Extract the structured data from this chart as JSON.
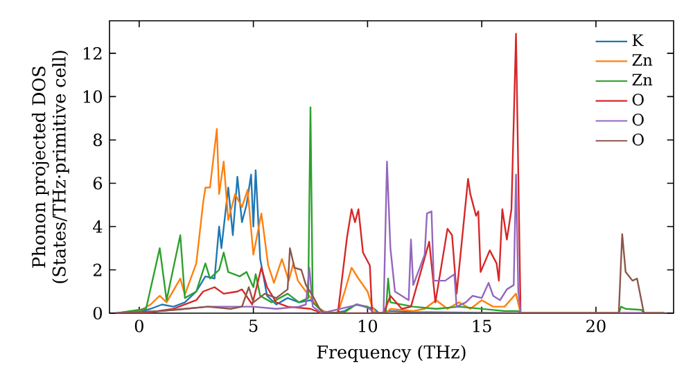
{
  "chart_data": {
    "type": "line",
    "xlabel": "Frequency (THz)",
    "ylabel": "Phonon projected DOS\n(States/THz·primitive cell)",
    "xlim": [
      -1.3,
      23.4
    ],
    "ylim": [
      0,
      13.5
    ],
    "xticks": [
      0,
      5,
      10,
      15,
      20
    ],
    "yticks": [
      0,
      2,
      4,
      6,
      8,
      10,
      12
    ],
    "legend": "top right",
    "series": [
      {
        "name": "K",
        "color": "#1f77b4",
        "x": [
          -1,
          0,
          0.5,
          1,
          1.5,
          2,
          2.5,
          2.9,
          3.3,
          3.5,
          3.6,
          3.9,
          4.1,
          4.3,
          4.5,
          4.7,
          4.9,
          5.0,
          5.1,
          5.3,
          5.6,
          6,
          6.5,
          7,
          7.5,
          8,
          8.5,
          9,
          9.5,
          10.3,
          10.5,
          11,
          12,
          16.7,
          23
        ],
        "values": [
          0,
          0.05,
          0.2,
          0.4,
          0.3,
          0.5,
          1.0,
          1.7,
          1.6,
          4.0,
          3.0,
          5.8,
          3.6,
          6.3,
          4.2,
          5.0,
          6.4,
          4.0,
          6.6,
          2.5,
          0.8,
          0.4,
          0.7,
          0.5,
          0.6,
          0.1,
          0,
          0.1,
          0.4,
          0.2,
          0,
          0.1,
          0.05,
          0,
          0
        ]
      },
      {
        "name": "Zn",
        "color": "#ff7f0e",
        "x": [
          -1,
          0,
          0.5,
          0.9,
          1.2,
          1.8,
          2.0,
          2.5,
          2.8,
          2.9,
          3.1,
          3.4,
          3.5,
          3.7,
          3.9,
          4.2,
          4.5,
          4.75,
          5.0,
          5.35,
          5.65,
          5.9,
          6.25,
          6.55,
          6.75,
          6.95,
          7.3,
          7.8,
          8.2,
          8.7,
          9.0,
          9.3,
          9.6,
          10.0,
          10.2,
          10.4,
          10.8,
          11,
          12,
          12.5,
          13,
          13.5,
          14,
          14.5,
          15,
          15.5,
          16,
          16.5,
          16.7,
          23
        ],
        "values": [
          0,
          0.1,
          0.4,
          0.8,
          0.5,
          1.6,
          0.85,
          2.3,
          5.1,
          5.8,
          5.8,
          8.5,
          5.5,
          7.0,
          4.3,
          5.5,
          4.9,
          5.7,
          2.7,
          4.6,
          2.2,
          1.4,
          2.5,
          1.5,
          2.3,
          1.5,
          1.0,
          0.3,
          0,
          0,
          1.0,
          2.1,
          1.6,
          1.0,
          0.3,
          0,
          0,
          0.2,
          0.1,
          0.2,
          0.6,
          0.2,
          0.5,
          0.2,
          0.6,
          0.3,
          0.3,
          0.9,
          0,
          0
        ]
      },
      {
        "name": "Zn",
        "color": "#2ca02c",
        "x": [
          -1,
          0.3,
          0.9,
          1.2,
          1.8,
          2.0,
          2.5,
          2.9,
          3.1,
          3.5,
          3.7,
          3.9,
          4.4,
          4.7,
          5.0,
          5.1,
          5.3,
          5.8,
          6.5,
          7.0,
          7.4,
          7.5,
          7.6,
          7.9,
          8.1,
          9.0,
          9.5,
          10.0,
          10.3,
          10.8,
          10.9,
          11.0,
          12,
          13,
          14,
          15,
          16,
          16.6,
          16.7,
          21,
          21.1,
          21.3,
          22,
          22.1,
          23
        ],
        "values": [
          0,
          0.2,
          3.0,
          0.6,
          3.6,
          0.7,
          1.0,
          2.3,
          1.6,
          2.0,
          2.8,
          1.9,
          1.7,
          1.9,
          1.2,
          1.8,
          0.8,
          0.5,
          0.9,
          0.5,
          0.7,
          9.5,
          0.5,
          0.2,
          0,
          0.05,
          0.4,
          0.3,
          0,
          0,
          1.6,
          0.5,
          0.3,
          0.2,
          0.3,
          0.2,
          0.1,
          0.1,
          0,
          0,
          0.3,
          0.2,
          0.15,
          0,
          0
        ]
      },
      {
        "name": "O",
        "color": "#d62728",
        "x": [
          -1,
          0.5,
          1.5,
          2.5,
          2.8,
          3.3,
          3.7,
          4.3,
          4.5,
          4.95,
          5.35,
          5.6,
          6.0,
          6.5,
          7.5,
          8,
          8.7,
          9.1,
          9.3,
          9.45,
          9.6,
          9.8,
          10.1,
          10.2,
          10.7,
          11.0,
          11.5,
          11.9,
          12.7,
          12.97,
          13.5,
          13.7,
          13.9,
          14.4,
          14.5,
          14.75,
          14.85,
          14.95,
          15.35,
          15.65,
          15.75,
          15.9,
          16.1,
          16.3,
          16.5,
          16.7,
          23
        ],
        "values": [
          0,
          0.05,
          0.2,
          0.6,
          1.0,
          1.2,
          0.9,
          1.0,
          1.1,
          0.4,
          2.1,
          1.2,
          0.5,
          0.3,
          0.2,
          0,
          0,
          3.5,
          4.8,
          4.2,
          4.8,
          2.8,
          2.2,
          0,
          0,
          0.8,
          0.2,
          0.3,
          3.3,
          0.5,
          3.9,
          3.6,
          0.9,
          6.2,
          5.5,
          4.5,
          4.7,
          1.9,
          2.9,
          2.3,
          1.5,
          4.8,
          3.4,
          4.8,
          12.9,
          0,
          0
        ]
      },
      {
        "name": "O",
        "color": "#9467bd",
        "x": [
          -1,
          1,
          3,
          4,
          5,
          6,
          7,
          7.3,
          7.45,
          7.6,
          8,
          9.2,
          9.6,
          10.1,
          10.3,
          10.7,
          10.85,
          11.0,
          11.2,
          11.8,
          11.9,
          12.0,
          12.5,
          12.6,
          12.8,
          12.9,
          13.4,
          13.8,
          13.9,
          14.3,
          14.6,
          15.0,
          15.3,
          15.5,
          15.8,
          16.1,
          16.4,
          16.5,
          16.6,
          16.7,
          23
        ],
        "values": [
          0,
          0.1,
          0.3,
          0.3,
          0.3,
          0.2,
          0.3,
          0.4,
          2.1,
          0.3,
          0,
          0.3,
          0.4,
          0.2,
          0,
          0,
          7.0,
          3.0,
          1.0,
          0.6,
          3.4,
          1.3,
          2.7,
          4.6,
          4.7,
          1.5,
          1.5,
          1.8,
          0.3,
          0.5,
          0.8,
          0.7,
          1.4,
          0.8,
          0.6,
          1.1,
          1.3,
          6.4,
          1.0,
          0,
          0
        ]
      },
      {
        "name": "O",
        "color": "#8c564b",
        "x": [
          -1,
          1,
          3,
          4,
          4.5,
          4.8,
          5,
          5.5,
          6.0,
          6.5,
          6.6,
          6.8,
          7.1,
          7.3,
          7.6,
          7.9,
          8.1,
          21,
          21.15,
          21.3,
          21.6,
          21.8,
          22.1,
          23
        ],
        "values": [
          0,
          0.1,
          0.3,
          0.2,
          0.3,
          1.2,
          0.5,
          0.9,
          0.7,
          1.1,
          3.0,
          2.1,
          2.0,
          1.3,
          0.8,
          0.2,
          0,
          0,
          3.65,
          1.9,
          1.5,
          1.6,
          0,
          0
        ]
      }
    ]
  }
}
